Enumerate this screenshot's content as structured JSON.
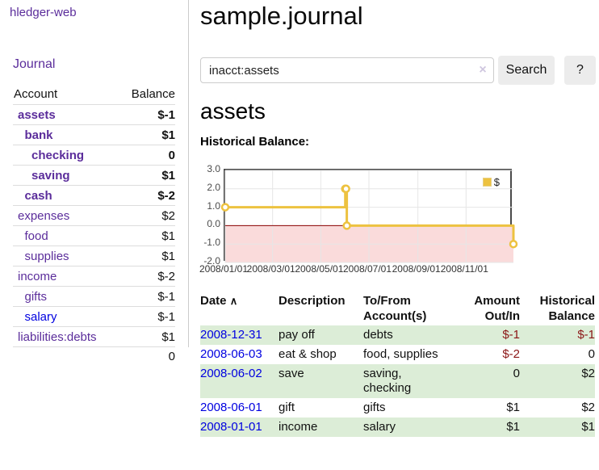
{
  "sidebar": {
    "brand": "hledger-web",
    "nav_journal": "Journal",
    "accounts_table": {
      "col_account": "Account",
      "col_balance": "Balance",
      "rows": [
        {
          "name": "assets",
          "indent": 1,
          "bold": true,
          "balance": "$-1",
          "balance_class": "neg-strong"
        },
        {
          "name": "bank",
          "indent": 2,
          "bold": true,
          "balance": "$1",
          "balance_class": ""
        },
        {
          "name": "checking",
          "indent": 3,
          "bold": true,
          "balance": "0",
          "balance_class": ""
        },
        {
          "name": "saving",
          "indent": 3,
          "bold": true,
          "balance": "$1",
          "balance_class": ""
        },
        {
          "name": "cash",
          "indent": 2,
          "bold": true,
          "balance": "$-2",
          "balance_class": "neg-strong"
        },
        {
          "name": "expenses",
          "indent": 1,
          "bold": false,
          "balance": "$2",
          "balance_class": ""
        },
        {
          "name": "food",
          "indent": 2,
          "bold": false,
          "balance": "$1",
          "balance_class": ""
        },
        {
          "name": "supplies",
          "indent": 2,
          "bold": false,
          "balance": "$1",
          "balance_class": ""
        },
        {
          "name": "income",
          "indent": 1,
          "bold": false,
          "balance": "$-2",
          "balance_class": "neg-soft"
        },
        {
          "name": "gifts",
          "indent": 2,
          "bold": false,
          "balance": "$-1",
          "balance_class": "neg-soft"
        },
        {
          "name": "salary",
          "indent": 2,
          "bold": false,
          "balance": "$-1",
          "balance_class": "neg-soft",
          "blue": true
        },
        {
          "name": "liabilities:debts",
          "indent": 1,
          "bold": false,
          "balance": "$1",
          "balance_class": ""
        }
      ],
      "total": "0"
    }
  },
  "header": {
    "title": "sample.journal"
  },
  "search": {
    "value": "inacct:assets",
    "clear_icon": "×",
    "button_label": "Search",
    "help_label": "?"
  },
  "account_page": {
    "heading": "assets",
    "chart_label": "Historical Balance:"
  },
  "chart_data": {
    "type": "line",
    "step": true,
    "series": [
      {
        "name": "$",
        "points": [
          [
            "2008-01-01",
            1
          ],
          [
            "2008-06-01",
            2
          ],
          [
            "2008-06-02",
            2
          ],
          [
            "2008-06-03",
            0
          ],
          [
            "2008-12-31",
            -1
          ]
        ]
      }
    ],
    "xlim": [
      "2008-01-01",
      "2008-12-31"
    ],
    "ylim": [
      -2,
      3
    ],
    "y_ticks": [
      3.0,
      2.0,
      1.0,
      0.0,
      -1.0,
      -2.0
    ],
    "x_ticks": [
      "2008/01/01",
      "2008/03/01",
      "2008/05/01",
      "2008/07/01",
      "2008/09/01",
      "2008/11/01"
    ],
    "legend_position": "top-right",
    "grid": true,
    "line_color": "#edc240",
    "marker_fill": "#ffffff",
    "negative_region": "#fadbdb",
    "zero_line": "#8b0000",
    "grid_color": "#e6e6e6"
  },
  "register_table": {
    "sort_indicator": "∧",
    "columns": [
      {
        "label": "Date"
      },
      {
        "label": "Description"
      },
      {
        "label": "To/From Account(s)"
      },
      {
        "label": "Amount Out/In"
      },
      {
        "label": "Historical Balance"
      }
    ],
    "rows": [
      {
        "date": "2008-12-31",
        "description": "pay off",
        "accounts": "debts",
        "amount": "$-1",
        "amount_neg": true,
        "balance": "$-1",
        "balance_neg": true
      },
      {
        "date": "2008-06-03",
        "description": "eat & shop",
        "accounts": "food, supplies",
        "amount": "$-2",
        "amount_neg": true,
        "balance": "0",
        "balance_neg": false
      },
      {
        "date": "2008-06-02",
        "description": "save",
        "accounts": "saving, checking",
        "amount": "0",
        "amount_neg": false,
        "balance": "$2",
        "balance_neg": false
      },
      {
        "date": "2008-06-01",
        "description": "gift",
        "accounts": "gifts",
        "amount": "$1",
        "amount_neg": false,
        "balance": "$2",
        "balance_neg": false
      },
      {
        "date": "2008-01-01",
        "description": "income",
        "accounts": "salary",
        "amount": "$1",
        "amount_neg": false,
        "balance": "$1",
        "balance_neg": false
      }
    ]
  },
  "colors": {
    "link_purple": "#5b2d9b",
    "link_blue": "#0000e0",
    "negative_strong": "#8b1616",
    "negative_soft": "#b46a6a",
    "row_stripe_green": "#dcedd7",
    "accent_gold": "#edc240"
  }
}
